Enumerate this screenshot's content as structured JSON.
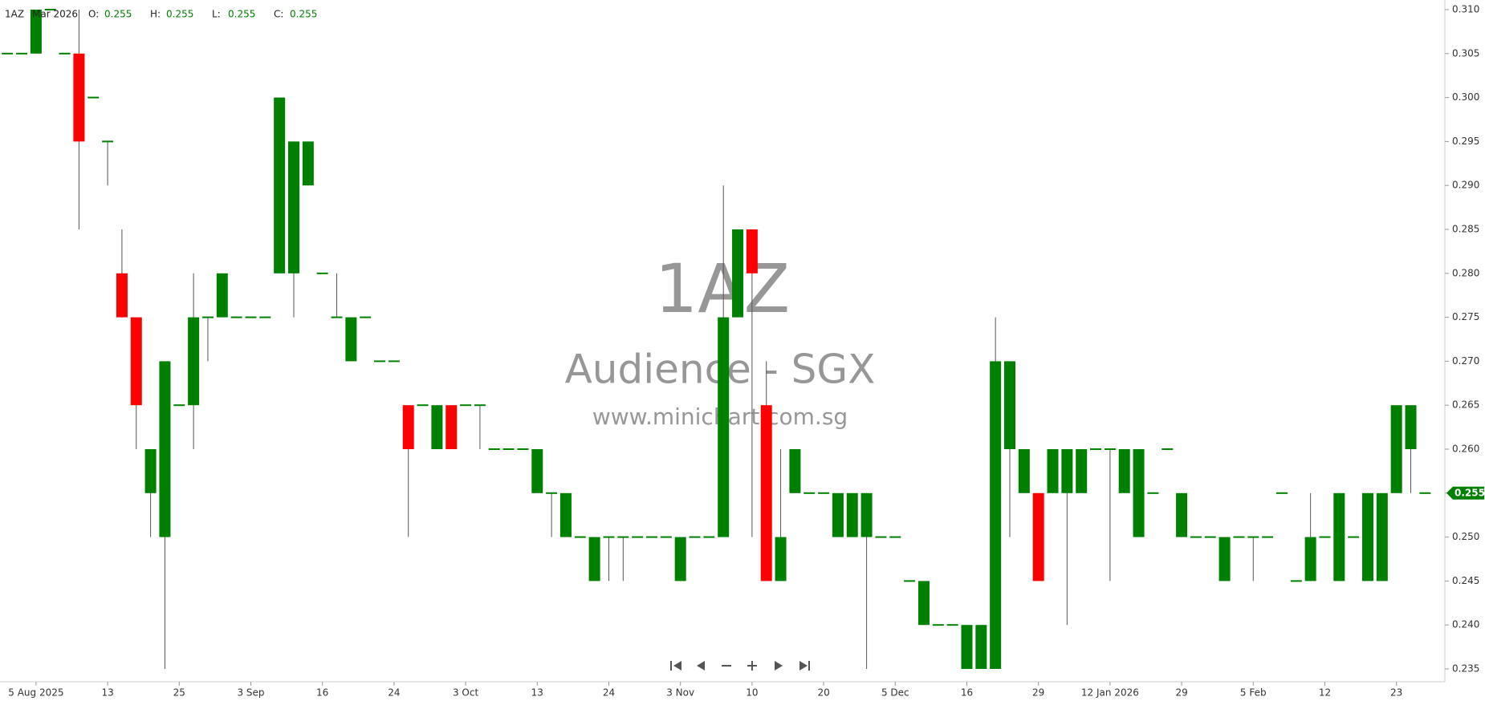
{
  "header": {
    "symbol": "1AZ",
    "date": "Mar 2026",
    "fields": [
      {
        "label": "O:",
        "value": 0.255
      },
      {
        "label": "H:",
        "value": 0.255
      },
      {
        "label": "L:",
        "value": 0.255
      },
      {
        "label": "C:",
        "value": 0.255
      }
    ]
  },
  "chart_data": {
    "type": "candlestick",
    "title": "1AZ",
    "subtitle": "Audience - SGX",
    "annotation": "www.minichart.com.sg",
    "up_color": "#008000",
    "down_color": "#ff0000",
    "last_price": 0.255,
    "categories": [
      null,
      null,
      "5 Aug 2025",
      null,
      null,
      null,
      null,
      "13",
      null,
      null,
      null,
      null,
      "25",
      null,
      null,
      null,
      null,
      "3 Sep",
      null,
      null,
      null,
      null,
      "16",
      null,
      null,
      null,
      null,
      "24",
      null,
      null,
      null,
      null,
      "3 Oct",
      null,
      null,
      null,
      null,
      "13",
      null,
      null,
      null,
      null,
      "24",
      null,
      null,
      null,
      null,
      "3 Nov",
      null,
      null,
      null,
      null,
      "10",
      null,
      null,
      null,
      null,
      "20",
      null,
      null,
      null,
      null,
      "5 Dec",
      null,
      null,
      null,
      null,
      "16",
      null,
      null,
      null,
      null,
      "29",
      null,
      null,
      null,
      null,
      "12 Jan 2026",
      null,
      null,
      null,
      null,
      "29",
      null,
      null,
      null,
      null,
      "5 Feb",
      null,
      null,
      null,
      null,
      "12",
      null,
      null,
      null,
      null,
      "23",
      null,
      null
    ],
    "open": [
      0.305,
      0.305,
      0.305,
      0.31,
      0.305,
      0.305,
      0.3,
      0.295,
      0.28,
      0.275,
      0.255,
      0.25,
      0.265,
      0.265,
      0.275,
      0.275,
      0.275,
      0.275,
      0.275,
      0.28,
      0.28,
      0.29,
      0.28,
      0.275,
      0.27,
      0.275,
      0.27,
      0.27,
      0.265,
      0.265,
      0.26,
      0.265,
      0.265,
      0.265,
      0.26,
      0.26,
      0.26,
      0.255,
      0.255,
      0.25,
      0.25,
      0.245,
      0.25,
      0.25,
      0.25,
      0.25,
      0.25,
      0.245,
      0.25,
      0.25,
      0.25,
      0.275,
      0.285,
      0.265,
      0.245,
      0.255,
      0.255,
      0.255,
      0.25,
      0.25,
      0.25,
      0.25,
      0.25,
      0.245,
      0.24,
      0.24,
      0.24,
      0.235,
      0.235,
      0.235,
      0.26,
      0.255,
      0.255,
      0.255,
      0.255,
      0.255,
      0.26,
      0.26,
      0.255,
      0.25,
      0.255,
      0.26,
      0.25,
      0.25,
      0.25,
      0.245,
      0.25,
      0.25,
      0.25,
      0.255,
      0.245,
      0.245,
      0.25,
      0.245,
      0.25,
      0.245,
      0.245,
      0.255,
      0.26,
      0.255
    ],
    "high": [
      0.305,
      0.305,
      0.31,
      0.31,
      0.305,
      0.31,
      0.3,
      0.295,
      0.285,
      0.275,
      0.26,
      0.27,
      0.265,
      0.28,
      0.275,
      0.28,
      0.275,
      0.275,
      0.275,
      0.3,
      0.295,
      0.295,
      0.28,
      0.28,
      0.275,
      0.275,
      0.27,
      0.27,
      0.265,
      0.265,
      0.265,
      0.265,
      0.265,
      0.265,
      0.26,
      0.26,
      0.26,
      0.26,
      0.255,
      0.255,
      0.25,
      0.25,
      0.25,
      0.25,
      0.25,
      0.25,
      0.25,
      0.25,
      0.25,
      0.25,
      0.29,
      0.285,
      0.285,
      0.27,
      0.26,
      0.26,
      0.255,
      0.255,
      0.255,
      0.255,
      0.255,
      0.25,
      0.25,
      0.245,
      0.245,
      0.24,
      0.24,
      0.24,
      0.24,
      0.275,
      0.27,
      0.26,
      0.255,
      0.26,
      0.26,
      0.26,
      0.26,
      0.26,
      0.26,
      0.26,
      0.255,
      0.26,
      0.255,
      0.25,
      0.25,
      0.25,
      0.25,
      0.25,
      0.25,
      0.255,
      0.245,
      0.255,
      0.25,
      0.255,
      0.25,
      0.255,
      0.255,
      0.265,
      0.265,
      0.255
    ],
    "low": [
      0.305,
      0.305,
      0.305,
      0.31,
      0.305,
      0.285,
      0.3,
      0.29,
      0.275,
      0.26,
      0.25,
      0.235,
      0.265,
      0.26,
      0.27,
      0.275,
      0.275,
      0.275,
      0.275,
      0.28,
      0.275,
      0.29,
      0.28,
      0.275,
      0.27,
      0.275,
      0.27,
      0.27,
      0.25,
      0.265,
      0.26,
      0.26,
      0.265,
      0.26,
      0.26,
      0.26,
      0.26,
      0.255,
      0.25,
      0.25,
      0.25,
      0.245,
      0.245,
      0.245,
      0.25,
      0.25,
      0.25,
      0.245,
      0.25,
      0.25,
      0.25,
      0.275,
      0.25,
      0.245,
      0.245,
      0.255,
      0.255,
      0.255,
      0.25,
      0.25,
      0.235,
      0.25,
      0.25,
      0.245,
      0.24,
      0.24,
      0.24,
      0.235,
      0.235,
      0.235,
      0.25,
      0.255,
      0.245,
      0.255,
      0.24,
      0.255,
      0.26,
      0.245,
      0.255,
      0.25,
      0.255,
      0.26,
      0.25,
      0.25,
      0.25,
      0.245,
      0.25,
      0.245,
      0.25,
      0.255,
      0.245,
      0.245,
      0.25,
      0.245,
      0.25,
      0.245,
      0.245,
      0.255,
      0.255,
      0.255
    ],
    "close": [
      0.305,
      0.305,
      0.31,
      0.31,
      0.305,
      0.295,
      0.3,
      0.295,
      0.275,
      0.265,
      0.26,
      0.27,
      0.265,
      0.275,
      0.275,
      0.28,
      0.275,
      0.275,
      0.275,
      0.3,
      0.295,
      0.295,
      0.28,
      0.275,
      0.275,
      0.275,
      0.27,
      0.27,
      0.26,
      0.265,
      0.265,
      0.26,
      0.265,
      0.265,
      0.26,
      0.26,
      0.26,
      0.26,
      0.255,
      0.255,
      0.25,
      0.25,
      0.25,
      0.25,
      0.25,
      0.25,
      0.25,
      0.25,
      0.25,
      0.25,
      0.275,
      0.285,
      0.28,
      0.245,
      0.25,
      0.26,
      0.255,
      0.255,
      0.255,
      0.255,
      0.255,
      0.25,
      0.25,
      0.245,
      0.245,
      0.24,
      0.24,
      0.24,
      0.24,
      0.27,
      0.27,
      0.26,
      0.245,
      0.26,
      0.26,
      0.26,
      0.26,
      0.26,
      0.26,
      0.26,
      0.255,
      0.26,
      0.255,
      0.25,
      0.25,
      0.25,
      0.25,
      0.25,
      0.25,
      0.255,
      0.245,
      0.25,
      0.25,
      0.255,
      0.25,
      0.255,
      0.255,
      0.265,
      0.265,
      0.255
    ],
    "ylim": [
      0.235,
      0.31
    ],
    "yticks": [
      {
        "value": 0.31,
        "label": "0.310"
      },
      0.305,
      {
        "value": 0.3,
        "label": "0.300"
      },
      0.295,
      {
        "value": 0.29,
        "label": "0.290"
      },
      0.285,
      {
        "value": 0.28,
        "label": "0.280"
      },
      0.275,
      {
        "value": 0.27,
        "label": "0.270"
      },
      0.265,
      {
        "value": 0.26,
        "label": "0.260"
      },
      0.255,
      {
        "value": 0.25,
        "label": "0.250"
      },
      0.245,
      {
        "value": 0.24,
        "label": "0.240"
      },
      0.235
    ]
  }
}
